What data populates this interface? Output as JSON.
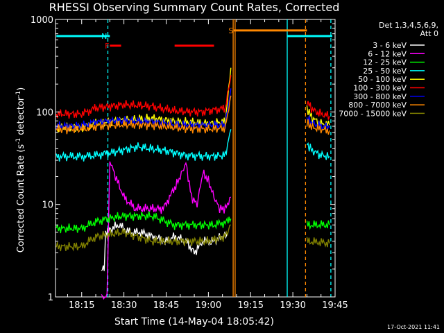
{
  "chart_data": {
    "type": "line",
    "title": "RHESSI Observing Summary Count Rates, Corrected",
    "xlabel": "Start Time (14-May-04 18:05:42)",
    "ylabel_main": "Corrected Count Rate (s",
    "ylabel_sup1": "-1",
    "ylabel_mid": " detector",
    "ylabel_sup2": "-1",
    "ylabel_end": ")",
    "yscale": "log",
    "ylim": [
      1,
      1000
    ],
    "xlim_minutes": [
      5.7,
      105
    ],
    "x_ticks": [
      {
        "m": 15,
        "label": "18:15"
      },
      {
        "m": 30,
        "label": "18:30"
      },
      {
        "m": 45,
        "label": "18:45"
      },
      {
        "m": 60,
        "label": "19:00"
      },
      {
        "m": 75,
        "label": "19:15"
      },
      {
        "m": 90,
        "label": "19:30"
      },
      {
        "m": 105,
        "label": "19:45"
      }
    ],
    "y_ticks": [
      {
        "v": 1,
        "label": "1"
      },
      {
        "v": 10,
        "label": "10"
      },
      {
        "v": 100,
        "label": "100"
      },
      {
        "v": 1000,
        "label": "1000"
      }
    ],
    "legend_header": [
      "Det 1,3,4,5,6,9,",
      "Att 0"
    ],
    "series": [
      {
        "name": "3 - 6 keV",
        "color": "#ffffff",
        "points": [
          [
            22,
            2
          ],
          [
            23,
            2
          ],
          [
            23.5,
            5
          ],
          [
            28,
            6
          ],
          [
            32,
            5
          ],
          [
            36,
            5
          ],
          [
            40,
            4.5
          ],
          [
            45,
            4
          ],
          [
            48,
            4.5
          ],
          [
            52,
            4
          ],
          [
            55,
            3
          ],
          [
            58,
            4
          ],
          [
            62,
            4
          ],
          [
            65,
            4.5
          ],
          [
            67,
            4.8
          ],
          [
            90,
            null
          ]
        ]
      },
      {
        "name": "6 - 12 keV",
        "color": "#ff00ff",
        "points": [
          [
            22,
            1
          ],
          [
            24,
            1
          ],
          [
            25,
            30
          ],
          [
            27,
            20
          ],
          [
            30,
            12
          ],
          [
            34,
            9
          ],
          [
            38,
            9
          ],
          [
            44,
            9
          ],
          [
            48,
            15
          ],
          [
            50,
            20
          ],
          [
            52,
            28
          ],
          [
            54,
            12
          ],
          [
            56,
            10
          ],
          [
            58,
            22
          ],
          [
            60,
            18
          ],
          [
            62,
            12
          ],
          [
            64,
            9
          ],
          [
            66,
            9
          ],
          [
            68,
            12
          ]
        ]
      },
      {
        "name": "12 - 25 keV",
        "color": "#00ff00",
        "points": [
          [
            6,
            5.5
          ],
          [
            15,
            5.5
          ],
          [
            20,
            6.5
          ],
          [
            24,
            7
          ],
          [
            30,
            7.5
          ],
          [
            40,
            7.5
          ],
          [
            48,
            6
          ],
          [
            56,
            6
          ],
          [
            62,
            6
          ],
          [
            67,
            6.5
          ],
          [
            68,
            7
          ],
          [
            null,
            null
          ],
          [
            95,
            6
          ],
          [
            103,
            6
          ]
        ]
      },
      {
        "name": "25 - 50 keV",
        "color": "#00ffff",
        "points": [
          [
            6,
            33
          ],
          [
            10,
            33
          ],
          [
            15,
            33
          ],
          [
            20,
            34
          ],
          [
            25,
            36
          ],
          [
            35,
            42
          ],
          [
            45,
            38
          ],
          [
            52,
            34
          ],
          [
            60,
            33
          ],
          [
            66,
            34
          ],
          [
            68,
            65
          ],
          [
            null,
            null
          ],
          [
            95,
            45
          ],
          [
            97,
            38
          ],
          [
            100,
            34
          ],
          [
            103,
            33
          ]
        ]
      },
      {
        "name": "50 - 100 keV",
        "color": "#ffff00",
        "points": [
          [
            6,
            68
          ],
          [
            15,
            68
          ],
          [
            20,
            75
          ],
          [
            30,
            82
          ],
          [
            40,
            85
          ],
          [
            50,
            78
          ],
          [
            60,
            75
          ],
          [
            66,
            78
          ],
          [
            68,
            300
          ],
          [
            null,
            null
          ],
          [
            95,
            110
          ],
          [
            97,
            85
          ],
          [
            100,
            75
          ],
          [
            103,
            72
          ]
        ]
      },
      {
        "name": "100 - 300 keV",
        "color": "#ff0000",
        "points": [
          [
            6,
            95
          ],
          [
            15,
            95
          ],
          [
            20,
            110
          ],
          [
            30,
            120
          ],
          [
            40,
            115
          ],
          [
            48,
            102
          ],
          [
            58,
            100
          ],
          [
            66,
            110
          ],
          [
            68,
            250
          ],
          [
            null,
            null
          ],
          [
            95,
            130
          ],
          [
            97,
            105
          ],
          [
            100,
            95
          ],
          [
            103,
            90
          ]
        ]
      },
      {
        "name": "300 - 800 keV",
        "color": "#0000ff",
        "points": [
          [
            6,
            70
          ],
          [
            15,
            70
          ],
          [
            20,
            78
          ],
          [
            30,
            80
          ],
          [
            40,
            78
          ],
          [
            50,
            72
          ],
          [
            60,
            72
          ],
          [
            66,
            72
          ],
          [
            68,
            180
          ],
          [
            null,
            null
          ],
          [
            95,
            85
          ],
          [
            97,
            75
          ],
          [
            100,
            70
          ],
          [
            103,
            68
          ]
        ]
      },
      {
        "name": "800 - 7000 keV",
        "color": "#ff8800",
        "points": [
          [
            6,
            65
          ],
          [
            15,
            65
          ],
          [
            20,
            70
          ],
          [
            30,
            73
          ],
          [
            40,
            72
          ],
          [
            50,
            67
          ],
          [
            60,
            65
          ],
          [
            66,
            67
          ],
          [
            68,
            150
          ],
          [
            null,
            null
          ],
          [
            95,
            75
          ],
          [
            97,
            68
          ],
          [
            100,
            65
          ],
          [
            103,
            63
          ]
        ]
      },
      {
        "name": "7000 - 15000 keV",
        "color": "#808000",
        "points": [
          [
            6,
            3.5
          ],
          [
            15,
            3.5
          ],
          [
            20,
            4.5
          ],
          [
            30,
            5
          ],
          [
            40,
            4
          ],
          [
            50,
            4
          ],
          [
            60,
            4
          ],
          [
            66,
            4.5
          ],
          [
            68,
            6
          ],
          [
            null,
            null
          ],
          [
            95,
            4
          ],
          [
            103,
            3.8
          ]
        ]
      }
    ],
    "bars": [
      {
        "label": "",
        "color": "#00ffff",
        "y": 660,
        "x0": 6,
        "x1": 24
      },
      {
        "label": "N",
        "color": "#00ffff",
        "y": 660,
        "x0": 24,
        "x1": 25
      },
      {
        "label": "",
        "color": "#00ffff",
        "y": 660,
        "x0": 88,
        "x1": 104
      },
      {
        "label": "F",
        "color": "#ff0000",
        "y": 520,
        "x0": 25,
        "x1": 29
      },
      {
        "label": "",
        "color": "#ff0000",
        "y": 520,
        "x0": 48,
        "x1": 62
      },
      {
        "label": "S",
        "color": "#ff8800",
        "y": 760,
        "x0": 69,
        "x1": 95
      }
    ],
    "vlines": [
      {
        "m": 24.3,
        "color": "#00ffff",
        "dash": true
      },
      {
        "m": 68.8,
        "color": "#ff8800",
        "dash": false
      },
      {
        "m": 69.5,
        "color": "#ff8800",
        "dash": false
      },
      {
        "m": 88,
        "color": "#00ffff",
        "dash": false
      },
      {
        "m": 94.5,
        "color": "#ff8800",
        "dash": true
      },
      {
        "m": 103.5,
        "color": "#00ffff",
        "dash": true
      }
    ]
  },
  "footer_date": "17-Oct-2021 11:41"
}
